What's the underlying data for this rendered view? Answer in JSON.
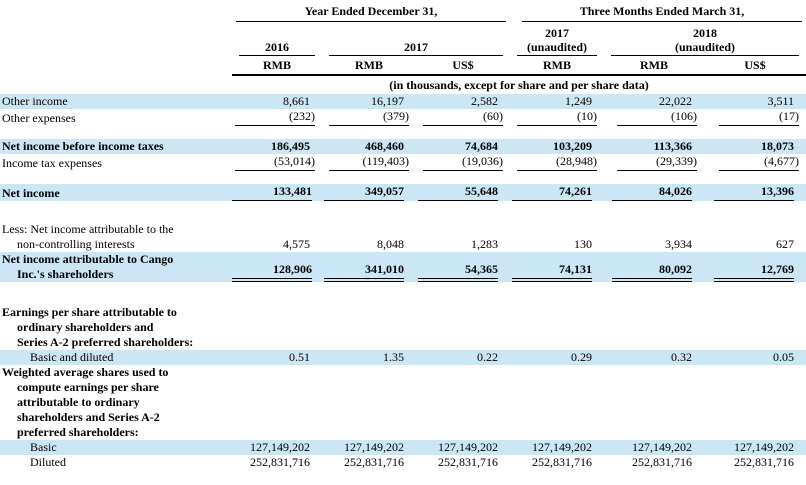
{
  "meta": {
    "caption": "(in thousands, except for share and per share data)"
  },
  "colors": {
    "highlight_row": "#cbe7f6",
    "text": "#000000",
    "rule": "#000000"
  },
  "header": {
    "group1": "Year Ended December 31,",
    "group2": "Three Months Ended March 31,",
    "y2016": "2016",
    "y2017": "2017",
    "q2017": "2017",
    "q2017_note": "(unaudited)",
    "q2018": "2018",
    "q2018_note": "(unaudited)",
    "units": [
      "RMB",
      "RMB",
      "US$",
      "RMB",
      "RMB",
      "US$"
    ]
  },
  "table": {
    "rows": [
      {
        "label_lines": [
          "Other income"
        ],
        "values": [
          "8,661",
          "16,197",
          "2,582",
          "1,249",
          "22,022",
          "3,511"
        ],
        "highlight": true,
        "bold": false,
        "underline": "none",
        "indent": 0
      },
      {
        "label_lines": [
          "Other expenses"
        ],
        "values": [
          "(232)",
          "(379)",
          "(60)",
          "(10)",
          "(106)",
          "(17)"
        ],
        "highlight": false,
        "bold": false,
        "underline": "single",
        "indent": 0
      },
      {
        "spacer": 13
      },
      {
        "label_lines": [
          "Net income before income taxes"
        ],
        "values": [
          "186,495",
          "468,460",
          "74,684",
          "103,209",
          "113,366",
          "18,073"
        ],
        "highlight": true,
        "bold": true,
        "underline": "none",
        "indent": 0
      },
      {
        "label_lines": [
          "Income tax expenses"
        ],
        "values": [
          "(53,014)",
          "(119,403)",
          "(19,036)",
          "(28,948)",
          "(29,339)",
          "(4,677)"
        ],
        "highlight": false,
        "bold": false,
        "underline": "single",
        "indent": 0
      },
      {
        "spacer": 13
      },
      {
        "label_lines": [
          "Net income"
        ],
        "values": [
          "133,481",
          "349,057",
          "55,648",
          "74,261",
          "84,026",
          "13,396"
        ],
        "highlight": true,
        "bold": true,
        "underline": "single",
        "indent": 0
      },
      {
        "spacer": 21
      },
      {
        "label_lines": [
          "Less: Net income attributable to the",
          "non-controlling interests"
        ],
        "values": [
          "4,575",
          "8,048",
          "1,283",
          "130",
          "3,934",
          "627"
        ],
        "highlight": false,
        "bold": false,
        "underline": "none",
        "indent": 0
      },
      {
        "label_lines": [
          "Net income attributable to Cango",
          "Inc.'s shareholders"
        ],
        "values": [
          "128,906",
          "341,010",
          "54,365",
          "74,131",
          "80,092",
          "12,769"
        ],
        "highlight": true,
        "bold": true,
        "underline": "double",
        "indent": 0
      },
      {
        "spacer": 23
      },
      {
        "label_lines": [
          "Earnings per share attributable to",
          "ordinary shareholders and",
          "Series A-2 preferred shareholders:"
        ],
        "values": [],
        "highlight": false,
        "bold": true,
        "underline": "none",
        "indent": 0
      },
      {
        "label_lines": [
          "Basic and diluted"
        ],
        "values": [
          "0.51",
          "1.35",
          "0.22",
          "0.29",
          "0.32",
          "0.05"
        ],
        "highlight": true,
        "bold": false,
        "underline": "none",
        "indent": 1
      },
      {
        "label_lines": [
          "Weighted average shares used to",
          "compute earnings per share",
          "attributable to ordinary",
          "shareholders and Series A-2",
          "preferred shareholders:"
        ],
        "values": [],
        "highlight": false,
        "bold": true,
        "underline": "none",
        "indent": 0
      },
      {
        "label_lines": [
          "Basic"
        ],
        "values": [
          "127,149,202",
          "127,149,202",
          "127,149,202",
          "127,149,202",
          "127,149,202",
          "127,149,202"
        ],
        "highlight": true,
        "bold": false,
        "underline": "none",
        "indent": 1
      },
      {
        "label_lines": [
          "Diluted"
        ],
        "values": [
          "252,831,716",
          "252,831,716",
          "252,831,716",
          "252,831,716",
          "252,831,716",
          "252,831,716"
        ],
        "highlight": false,
        "bold": false,
        "underline": "none",
        "indent": 1
      }
    ]
  }
}
